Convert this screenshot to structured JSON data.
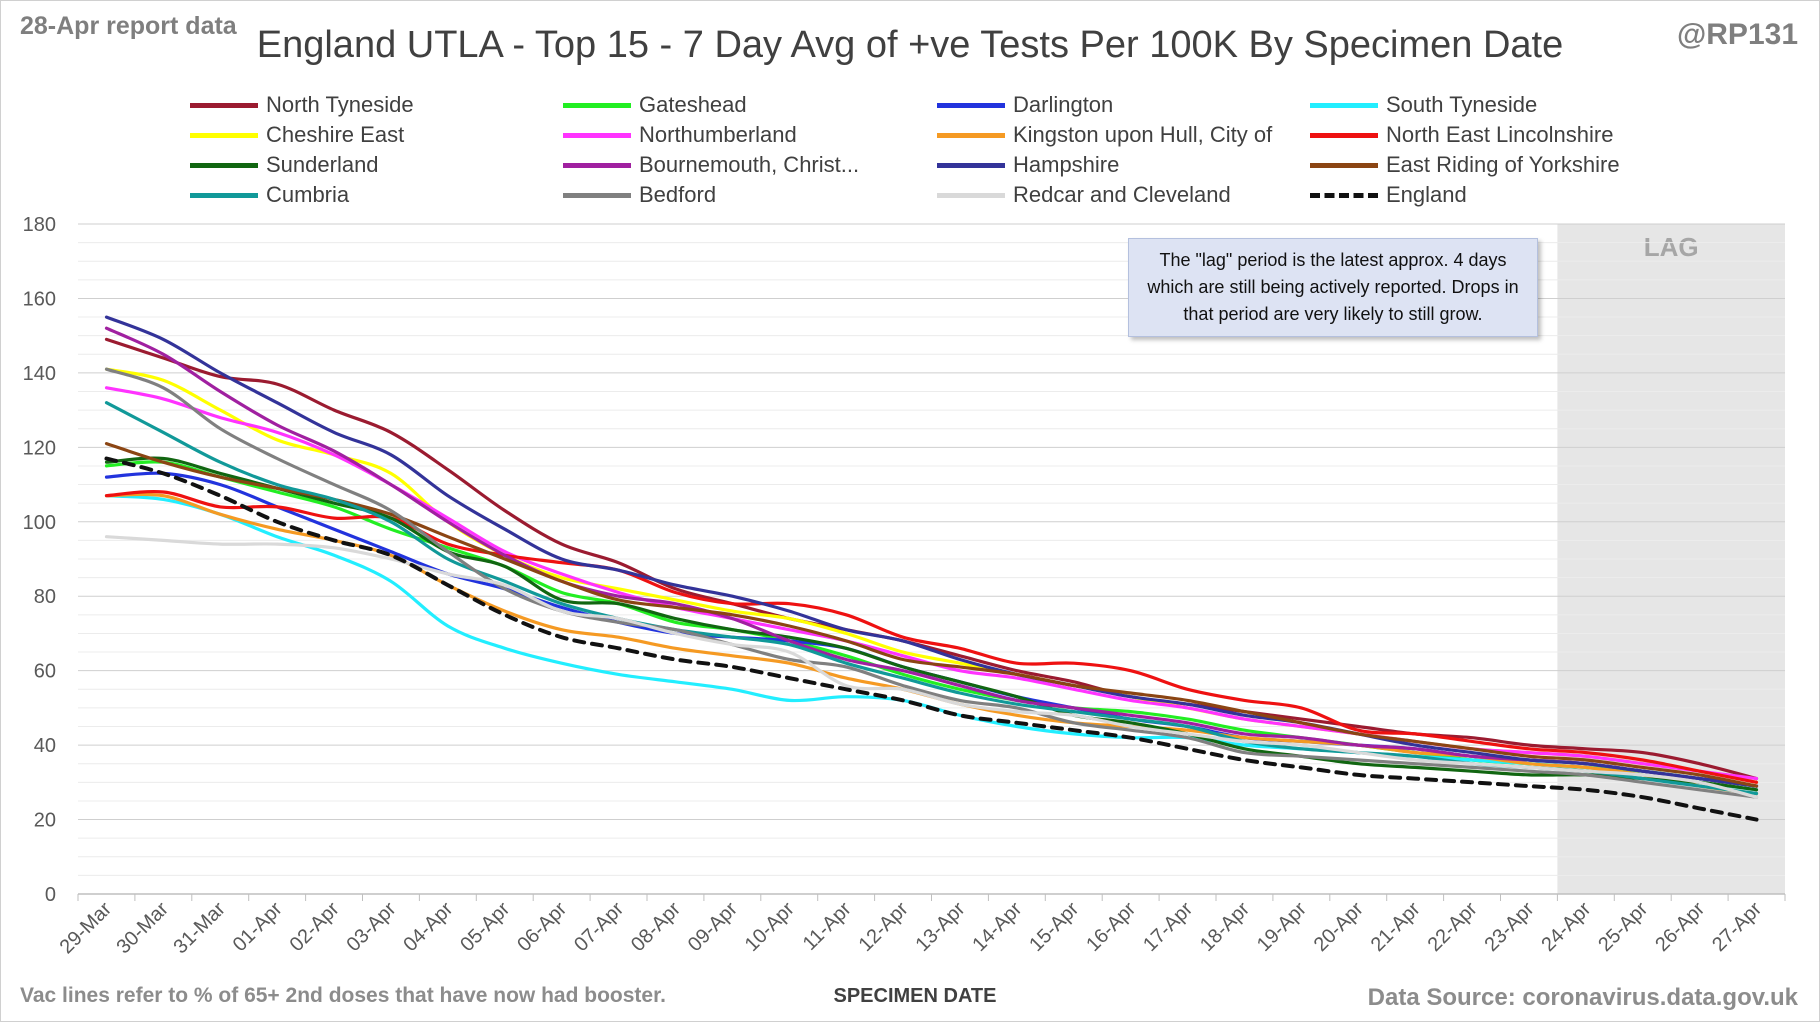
{
  "header": {
    "report_date": "28-Apr report data",
    "handle": "@RP131",
    "title": "England UTLA - Top 15 - 7 Day Avg of +ve Tests Per 100K By Specimen Date"
  },
  "note": "The \"lag\" period is the latest approx. 4 days which are still being actively reported. Drops in that period are very likely to still grow.",
  "footer": {
    "vac_note": "Vac lines refer to % of 65+ 2nd doses that have now had booster.",
    "source": "Data Source: coronavirus.data.gov.uk"
  },
  "chart_data": {
    "type": "line",
    "title": "England UTLA - Top 15 - 7 Day Avg of +ve Tests Per 100K By Specimen Date",
    "xlabel": "SPECIMEN DATE",
    "ylabel": "",
    "ylim": [
      0,
      180
    ],
    "yticks": [
      0,
      20,
      40,
      60,
      80,
      100,
      120,
      140,
      160,
      180
    ],
    "grid": true,
    "legend_position": "top",
    "lag_label": "LAG",
    "lag_start": "24-Apr",
    "lag_end": "27-Apr",
    "x": [
      "29-Mar",
      "30-Mar",
      "31-Mar",
      "01-Apr",
      "02-Apr",
      "03-Apr",
      "04-Apr",
      "05-Apr",
      "06-Apr",
      "07-Apr",
      "08-Apr",
      "09-Apr",
      "10-Apr",
      "11-Apr",
      "12-Apr",
      "13-Apr",
      "14-Apr",
      "15-Apr",
      "16-Apr",
      "17-Apr",
      "18-Apr",
      "19-Apr",
      "20-Apr",
      "21-Apr",
      "22-Apr",
      "23-Apr",
      "24-Apr",
      "25-Apr",
      "26-Apr",
      "27-Apr"
    ],
    "series": [
      {
        "name": "North Tyneside",
        "color": "#9b1b30",
        "dashed": false,
        "values": [
          149,
          144,
          139,
          137,
          130,
          124,
          114,
          103,
          94,
          89,
          82,
          78,
          74,
          71,
          68,
          64,
          60,
          57,
          53,
          51,
          49,
          47,
          45,
          43,
          42,
          40,
          39,
          38,
          35,
          31
        ]
      },
      {
        "name": "Gateshead",
        "color": "#22ee22",
        "dashed": false,
        "values": [
          115,
          116,
          112,
          108,
          104,
          98,
          93,
          88,
          81,
          78,
          73,
          71,
          68,
          64,
          59,
          55,
          52,
          50,
          49,
          47,
          44,
          42,
          40,
          38,
          36,
          35,
          34,
          33,
          31,
          29
        ]
      },
      {
        "name": "Darlington",
        "color": "#2233dd",
        "dashed": false,
        "values": [
          112,
          113,
          110,
          104,
          98,
          92,
          86,
          82,
          77,
          73,
          70,
          69,
          68,
          66,
          61,
          57,
          53,
          50,
          47,
          45,
          42,
          41,
          40,
          39,
          37,
          36,
          35,
          33,
          31,
          29
        ]
      },
      {
        "name": "South Tyneside",
        "color": "#22eeff",
        "dashed": false,
        "values": [
          107,
          106,
          102,
          96,
          91,
          84,
          72,
          66,
          62,
          59,
          57,
          55,
          52,
          53,
          52,
          48,
          45,
          43,
          42,
          42,
          40,
          39,
          38,
          37,
          36,
          35,
          34,
          32,
          30,
          28
        ]
      },
      {
        "name": "Cheshire East",
        "color": "#ffff00",
        "dashed": false,
        "values": [
          141,
          138,
          130,
          122,
          118,
          113,
          100,
          91,
          85,
          82,
          79,
          76,
          74,
          70,
          65,
          62,
          59,
          56,
          53,
          50,
          47,
          45,
          43,
          41,
          39,
          38,
          37,
          35,
          33,
          30
        ]
      },
      {
        "name": "Northumberland",
        "color": "#ff33ff",
        "dashed": false,
        "values": [
          136,
          133,
          128,
          124,
          118,
          110,
          101,
          92,
          86,
          81,
          77,
          74,
          71,
          68,
          64,
          60,
          58,
          55,
          52,
          50,
          47,
          45,
          43,
          41,
          39,
          38,
          37,
          35,
          33,
          31
        ]
      },
      {
        "name": "Kingston upon Hull, City of",
        "color": "#f59a23",
        "dashed": false,
        "values": [
          107,
          107,
          102,
          98,
          95,
          91,
          83,
          76,
          71,
          69,
          66,
          64,
          62,
          58,
          55,
          51,
          48,
          46,
          45,
          44,
          42,
          41,
          40,
          38,
          37,
          35,
          34,
          32,
          29,
          27
        ]
      },
      {
        "name": "North East Lincolnshire",
        "color": "#ee1111",
        "dashed": false,
        "values": [
          107,
          108,
          104,
          104,
          101,
          101,
          94,
          91,
          89,
          87,
          81,
          78,
          78,
          75,
          69,
          66,
          62,
          62,
          60,
          55,
          52,
          50,
          44,
          43,
          41,
          39,
          38,
          36,
          33,
          30
        ]
      },
      {
        "name": "Sunderland",
        "color": "#116611",
        "dashed": false,
        "values": [
          116,
          117,
          113,
          109,
          105,
          101,
          92,
          88,
          79,
          78,
          74,
          71,
          69,
          66,
          61,
          57,
          53,
          48,
          46,
          43,
          39,
          37,
          35,
          34,
          33,
          32,
          32,
          31,
          30,
          28
        ]
      },
      {
        "name": "Bournemouth, Christ...",
        "color": "#a020a0",
        "dashed": false,
        "values": [
          152,
          145,
          135,
          126,
          119,
          110,
          100,
          91,
          84,
          80,
          78,
          74,
          68,
          63,
          60,
          56,
          52,
          50,
          48,
          46,
          43,
          42,
          40,
          39,
          37,
          36,
          35,
          33,
          31,
          29
        ]
      },
      {
        "name": "Hampshire",
        "color": "#333399",
        "dashed": false,
        "values": [
          155,
          149,
          140,
          132,
          124,
          118,
          107,
          98,
          90,
          87,
          83,
          80,
          76,
          71,
          68,
          63,
          59,
          56,
          53,
          51,
          48,
          46,
          43,
          40,
          38,
          36,
          35,
          33,
          31,
          29
        ]
      },
      {
        "name": "East Riding of Yorkshire",
        "color": "#8b4513",
        "dashed": false,
        "values": [
          121,
          116,
          112,
          109,
          106,
          102,
          96,
          90,
          84,
          79,
          77,
          75,
          72,
          68,
          63,
          61,
          59,
          56,
          54,
          52,
          49,
          46,
          43,
          41,
          39,
          37,
          36,
          34,
          32,
          29
        ]
      },
      {
        "name": "Cumbria",
        "color": "#119999",
        "dashed": false,
        "values": [
          132,
          124,
          116,
          110,
          106,
          100,
          90,
          84,
          78,
          74,
          71,
          69,
          67,
          62,
          58,
          54,
          51,
          49,
          47,
          45,
          41,
          39,
          38,
          37,
          35,
          34,
          33,
          31,
          29,
          27
        ]
      },
      {
        "name": "Bedford",
        "color": "#808080",
        "dashed": false,
        "values": [
          141,
          136,
          125,
          117,
          110,
          103,
          92,
          82,
          76,
          73,
          71,
          67,
          63,
          61,
          56,
          52,
          50,
          46,
          44,
          42,
          38,
          37,
          36,
          35,
          34,
          33,
          32,
          30,
          28,
          26
        ]
      },
      {
        "name": "Redcar and Cleveland",
        "color": "#d9d9d9",
        "dashed": false,
        "values": [
          96,
          95,
          94,
          94,
          93,
          90,
          86,
          83,
          76,
          74,
          70,
          67,
          65,
          56,
          55,
          51,
          49,
          48,
          45,
          43,
          41,
          40,
          38,
          36,
          35,
          34,
          33,
          32,
          30,
          26
        ]
      },
      {
        "name": "England",
        "color": "#111111",
        "dashed": true,
        "values": [
          117,
          113,
          107,
          100,
          95,
          91,
          83,
          75,
          69,
          66,
          63,
          61,
          58,
          55,
          52,
          48,
          46,
          44,
          42,
          39,
          36,
          34,
          32,
          31,
          30,
          29,
          28,
          26,
          23,
          20
        ]
      }
    ]
  }
}
